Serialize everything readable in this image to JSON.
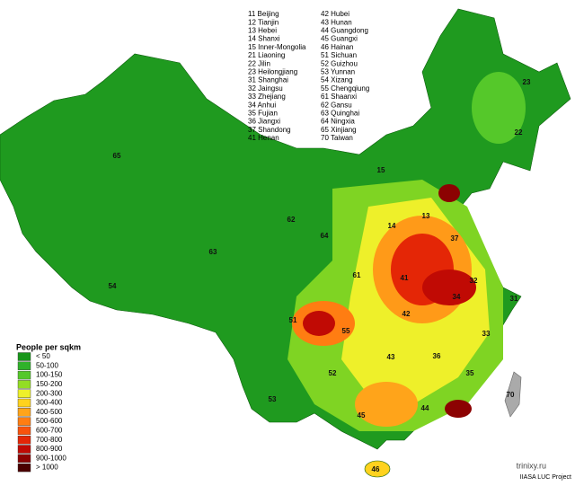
{
  "header": {
    "provinces_left": [
      "11 Beijing",
      "12 Tianjin",
      "13 Hebei",
      "14 Shanxi",
      "15 Inner-Mongolia",
      "21 Liaoning",
      "22 Jilin",
      "23 Heilongjiang",
      "31 Shanghai",
      "32 Jaingsu",
      "33 Zhejiang",
      "34 Anhui",
      "35 Fujian",
      "36 Jiangxi",
      "37 Shandong",
      "41 Henan"
    ],
    "provinces_right": [
      "42 Hubei",
      "43 Hunan",
      "44 Guangdong",
      "45 Guangxi",
      "46 Hainan",
      "51 Sichuan",
      "52 Guizhou",
      "53 Yunnan",
      "54 Xizang",
      "55 Chengqiung",
      "61 Shaanxi",
      "62 Gansu",
      "63 Quinghai",
      "64 Ningxia",
      "65 Xinjiang",
      "70 Taiwan"
    ]
  },
  "legend": {
    "title": "People per sqkm",
    "items": [
      {
        "label": "< 50",
        "color": "#17961a"
      },
      {
        "label": "50-100",
        "color": "#2fb22a"
      },
      {
        "label": "100-150",
        "color": "#55c82a"
      },
      {
        "label": "150-200",
        "color": "#93dd24"
      },
      {
        "label": "200-300",
        "color": "#eef02a"
      },
      {
        "label": "300-400",
        "color": "#ffd21e"
      },
      {
        "label": "400-500",
        "color": "#ffa41a"
      },
      {
        "label": "500-600",
        "color": "#ff7d12"
      },
      {
        "label": "600-700",
        "color": "#f8520c"
      },
      {
        "label": "700-800",
        "color": "#e42606"
      },
      {
        "label": "800-900",
        "color": "#c00a04"
      },
      {
        "label": "900-1000",
        "color": "#8c0202"
      },
      {
        "label": "> 1000",
        "color": "#4a0000"
      }
    ]
  },
  "map": {
    "labels": [
      "23",
      "22",
      "15",
      "13",
      "14",
      "37",
      "62",
      "64",
      "63",
      "65",
      "54",
      "61",
      "41",
      "32",
      "34",
      "31",
      "51",
      "55",
      "42",
      "33",
      "43",
      "36",
      "52",
      "35",
      "70",
      "53",
      "45",
      "44",
      "46"
    ]
  },
  "footer": {
    "watermark": "trinixy.ru",
    "credit": "IIASA LUC Project"
  }
}
